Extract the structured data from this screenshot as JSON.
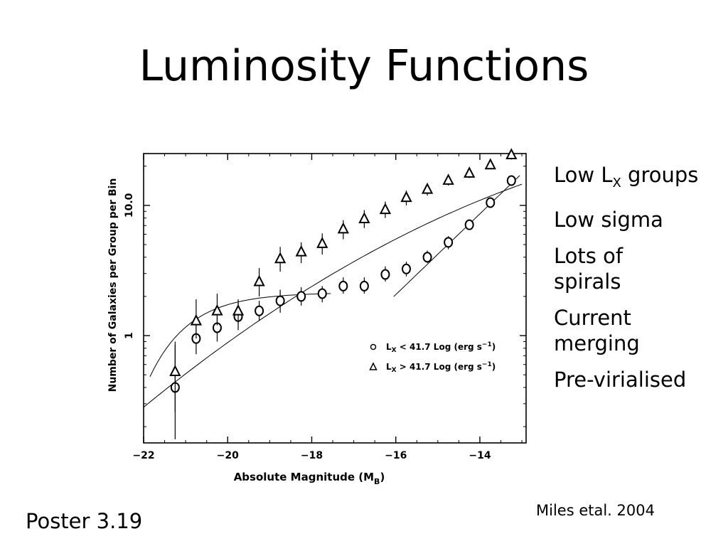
{
  "slide": {
    "title": "Luminosity Functions",
    "bullets": [
      {
        "main": "Low L",
        "sub": "X",
        "rest": " groups"
      },
      {
        "main": "Low sigma"
      },
      {
        "main": "Lots of spirals"
      },
      {
        "main": "Current merging"
      },
      {
        "main": "Pre-virialised"
      }
    ],
    "footer_left": "Poster 3.19",
    "citation": "Miles etal. 2004"
  },
  "chart_data": {
    "type": "scatter",
    "xlabel": "Absolute Magnitude (M",
    "xlabel_sub": "B",
    "xlabel_end": ")",
    "ylabel": "Number of Galaxies per Group per Bin",
    "xlim": [
      -22,
      -12.9
    ],
    "ylim": [
      0.15,
      25
    ],
    "yscale": "log",
    "xticks": [
      -22,
      -20,
      -18,
      -16,
      -14
    ],
    "xtick_labels": [
      "−22",
      "−20",
      "−18",
      "−16",
      "−14"
    ],
    "yticks": [
      1,
      10
    ],
    "ytick_labels": [
      "1",
      "10.0"
    ],
    "legend": {
      "placement": "lower-right",
      "entries": [
        {
          "marker": "circle",
          "prefix": "L",
          "sub": "X",
          "text": " < 41.7 Log (erg s",
          "sup": "−1",
          "end": ")"
        },
        {
          "marker": "triangle",
          "prefix": "L",
          "sub": "X",
          "text": " > 41.7 Log (erg s",
          "sup": "−1",
          "end": ")"
        }
      ]
    },
    "series": [
      {
        "marker": "circle",
        "x": [
          -21.25,
          -20.75,
          -20.25,
          -19.75,
          -19.25,
          -18.75,
          -18.25,
          -17.75,
          -17.25,
          -16.75,
          -16.25,
          -15.75,
          -15.25,
          -14.75,
          -14.25,
          -13.75,
          -13.25
        ],
        "y": [
          0.4,
          0.95,
          1.15,
          1.4,
          1.55,
          1.85,
          2.0,
          2.1,
          2.4,
          2.4,
          2.95,
          3.25,
          4.0,
          5.2,
          7.1,
          10.5,
          15.5
        ],
        "err": [
          [
            0.16,
            0.9
          ],
          [
            0.72,
            1.3
          ],
          [
            0.9,
            1.45
          ],
          [
            1.1,
            1.8
          ],
          [
            1.3,
            1.85
          ],
          [
            1.5,
            2.25
          ],
          [
            1.7,
            2.35
          ],
          [
            1.8,
            2.4
          ],
          [
            2.1,
            2.8
          ],
          [
            2.1,
            2.8
          ],
          [
            2.6,
            3.4
          ],
          [
            2.85,
            3.7
          ],
          [
            3.6,
            4.5
          ],
          [
            4.6,
            5.8
          ],
          [
            6.5,
            7.8
          ],
          [
            9.8,
            11.3
          ],
          [
            14.5,
            16.5
          ]
        ]
      },
      {
        "marker": "triangle",
        "x": [
          -21.25,
          -20.75,
          -20.25,
          -19.75,
          -19.25,
          -18.75,
          -18.25,
          -17.75,
          -17.25,
          -16.75,
          -16.25,
          -15.75,
          -15.25,
          -14.75,
          -14.25,
          -13.75,
          -13.25
        ],
        "y": [
          0.53,
          1.3,
          1.55,
          1.55,
          2.6,
          3.9,
          4.4,
          5.1,
          6.6,
          7.9,
          9.3,
          11.5,
          13.3,
          15.6,
          17.7,
          20.5,
          24.5
        ],
        "err": [
          [
            0.26,
            0.85
          ],
          [
            0.95,
            1.9
          ],
          [
            1.2,
            2.1
          ],
          [
            1.25,
            1.9
          ],
          [
            2.0,
            3.3
          ],
          [
            3.1,
            4.8
          ],
          [
            3.6,
            5.2
          ],
          [
            4.2,
            6.1
          ],
          [
            5.5,
            7.7
          ],
          [
            6.7,
            9.2
          ],
          [
            8.0,
            10.7
          ],
          [
            10.0,
            13.0
          ],
          [
            11.9,
            14.8
          ],
          [
            14.2,
            17.1
          ],
          [
            16.2,
            19.3
          ],
          [
            19.0,
            22.5
          ],
          [
            22.5,
            26
          ]
        ]
      }
    ]
  }
}
